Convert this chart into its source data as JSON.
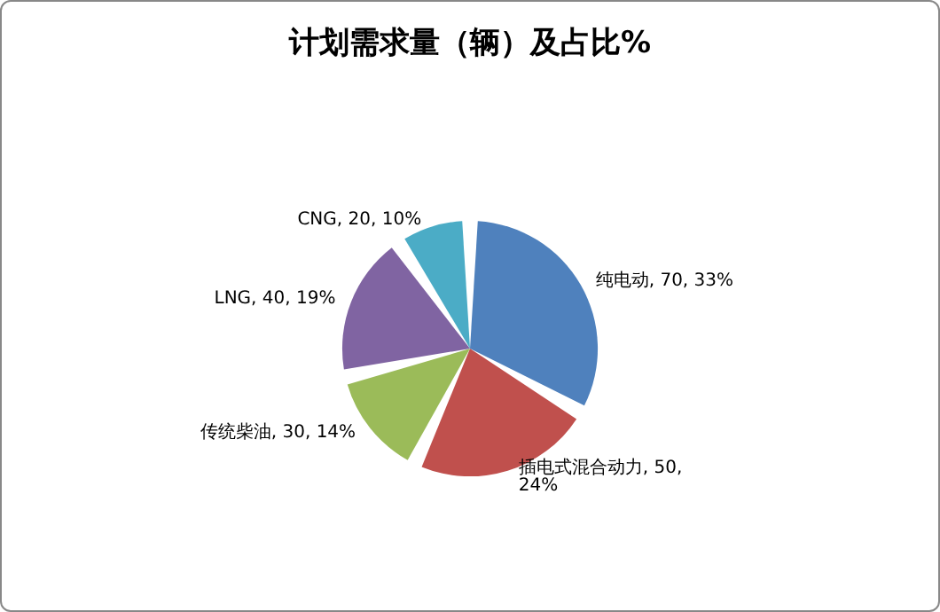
{
  "chart_data": {
    "type": "pie",
    "title": "计划需求量（辆）及占比%",
    "categories": [
      "纯电动",
      "插电式混合动力",
      "传统柴油",
      "LNG",
      "CNG"
    ],
    "values": [
      70,
      50,
      30,
      40,
      20
    ],
    "colors": [
      "#4f81bd",
      "#c0504d",
      "#9bbb59",
      "#8064a2",
      "#4bacc6"
    ],
    "value_labels": [
      "70, 33%",
      "50, 24%",
      "30, 14%",
      "40, 19%",
      "20, 10%"
    ],
    "legend": false
  }
}
